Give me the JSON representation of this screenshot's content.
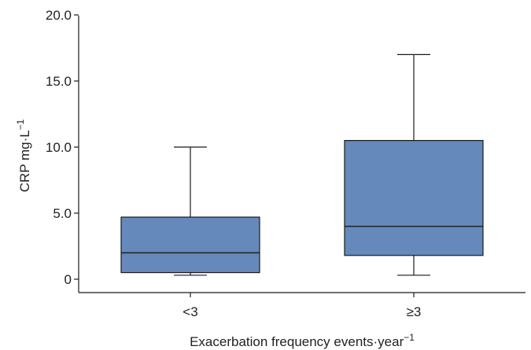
{
  "chart_data": {
    "type": "box",
    "title": "",
    "xlabel": "Exacerbation frequency events·year",
    "xlabel_sup": "−1",
    "ylabel": "CRP mg·L",
    "ylabel_sup": "−1",
    "ylim": [
      0,
      20
    ],
    "yticks": [
      0,
      5,
      10,
      15,
      20
    ],
    "ytick_labels": [
      "0",
      "5.0",
      "10.0",
      "15.0",
      "20.0"
    ],
    "categories": [
      "<3",
      "≥3"
    ],
    "boxes": [
      {
        "category": "<3",
        "min": 0.3,
        "q1": 0.5,
        "median": 2.0,
        "q3": 4.7,
        "max": 10.0
      },
      {
        "category": "≥3",
        "min": 0.3,
        "q1": 1.8,
        "median": 4.0,
        "q3": 10.5,
        "max": 17.0
      }
    ],
    "box_color": "#6589ba",
    "grid": false,
    "legend": "none"
  }
}
